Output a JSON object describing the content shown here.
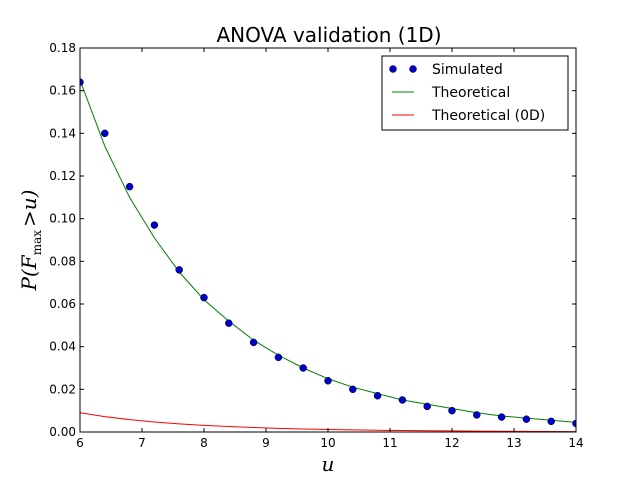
{
  "chart_data": {
    "type": "line",
    "title": "ANOVA validation (1D)",
    "xlabel": "u",
    "ylabel": "P(F_max > u)",
    "ylabel_parts": {
      "p": "P(",
      "f": "F",
      "sub": "max",
      "rest": ">u)"
    },
    "xlim": [
      6,
      14
    ],
    "ylim": [
      0,
      0.18
    ],
    "xticks": [
      6,
      7,
      8,
      9,
      10,
      11,
      12,
      13,
      14
    ],
    "xtick_labels": [
      "6",
      "7",
      "8",
      "9",
      "10",
      "11",
      "12",
      "13",
      "14"
    ],
    "yticks": [
      0,
      0.02,
      0.04,
      0.06,
      0.08,
      0.1,
      0.12,
      0.14,
      0.16,
      0.18
    ],
    "ytick_labels": [
      "0.00",
      "0.02",
      "0.04",
      "0.06",
      "0.08",
      "0.10",
      "0.12",
      "0.14",
      "0.16",
      "0.18"
    ],
    "grid": false,
    "legend_position": "top-right",
    "series": [
      {
        "name": "Simulated",
        "style": "markers",
        "color": "#0000cc",
        "x": [
          6.0,
          6.4,
          6.8,
          7.2,
          7.6,
          8.0,
          8.4,
          8.8,
          9.2,
          9.6,
          10.0,
          10.4,
          10.8,
          11.2,
          11.6,
          12.0,
          12.4,
          12.8,
          13.2,
          13.6,
          14.0
        ],
        "y": [
          0.164,
          0.14,
          0.115,
          0.097,
          0.076,
          0.063,
          0.051,
          0.042,
          0.035,
          0.03,
          0.024,
          0.02,
          0.017,
          0.015,
          0.012,
          0.01,
          0.008,
          0.007,
          0.006,
          0.005,
          0.004
        ]
      },
      {
        "name": "Theoretical",
        "style": "line",
        "color": "#008000",
        "x": [
          6.0,
          6.4,
          6.8,
          7.2,
          7.6,
          8.0,
          8.4,
          8.8,
          9.2,
          9.6,
          10.0,
          10.4,
          10.8,
          11.2,
          11.6,
          12.0,
          12.4,
          12.8,
          13.2,
          13.6,
          14.0
        ],
        "y": [
          0.165,
          0.134,
          0.11,
          0.091,
          0.075,
          0.062,
          0.052,
          0.043,
          0.036,
          0.03,
          0.025,
          0.021,
          0.018,
          0.015,
          0.013,
          0.011,
          0.009,
          0.0075,
          0.0065,
          0.0055,
          0.0045
        ]
      },
      {
        "name": "Theoretical (0D)",
        "style": "line",
        "color": "#ff0000",
        "x": [
          6.0,
          6.4,
          6.8,
          7.2,
          7.6,
          8.0,
          8.4,
          8.8,
          9.2,
          9.6,
          10.0,
          10.4,
          10.8,
          11.2,
          11.6,
          12.0,
          12.4,
          12.8,
          13.2,
          13.6,
          14.0
        ],
        "y": [
          0.009,
          0.0072,
          0.0058,
          0.0047,
          0.0038,
          0.0031,
          0.0026,
          0.0021,
          0.0017,
          0.0014,
          0.0012,
          0.001,
          0.0008,
          0.0007,
          0.0006,
          0.0005,
          0.0004,
          0.00035,
          0.0003,
          0.00025,
          0.0002
        ]
      }
    ]
  }
}
